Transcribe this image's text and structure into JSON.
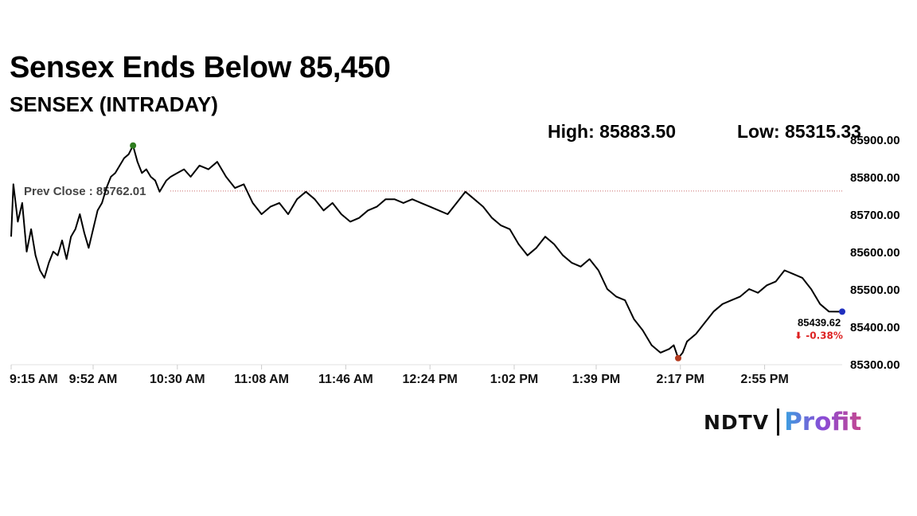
{
  "headline": "Sensex Ends Below 85,450",
  "chart_data": {
    "type": "line",
    "title": "SENSEX (INTRADAY)",
    "high_label": "High: 85883.50",
    "low_label": "Low: 85315.33",
    "prev_close": 85762.01,
    "prev_close_label": "Prev Close : 85762.01",
    "last_value_label": "85439.62",
    "change_label": "⬇ -0.38%",
    "ylim": [
      85300,
      85900
    ],
    "y_ticks": [
      85300,
      85400,
      85500,
      85600,
      85700,
      85800,
      85900
    ],
    "y_tick_labels": [
      "85300.00",
      "85400.00",
      "85500.00",
      "85600.00",
      "85700.00",
      "85800.00",
      "85900.00"
    ],
    "x_tick_labels": [
      "9:15 AM",
      "9:52 AM",
      "10:30 AM",
      "11:08 AM",
      "11:46 AM",
      "12:24 PM",
      "1:02 PM",
      "1:39 PM",
      "2:17 PM",
      "2:55 PM"
    ],
    "x": [
      "9:15",
      "9:16",
      "9:18",
      "9:20",
      "9:22",
      "9:24",
      "9:26",
      "9:28",
      "9:30",
      "9:32",
      "9:34",
      "9:36",
      "9:38",
      "9:40",
      "9:42",
      "9:44",
      "9:46",
      "9:48",
      "9:50",
      "9:52",
      "9:54",
      "9:56",
      "9:58",
      "10:00",
      "10:02",
      "10:04",
      "10:06",
      "10:08",
      "10:10",
      "10:12",
      "10:14",
      "10:16",
      "10:18",
      "10:20",
      "10:22",
      "10:25",
      "10:27",
      "10:30",
      "10:33",
      "10:36",
      "10:40",
      "10:44",
      "10:48",
      "10:52",
      "10:56",
      "11:00",
      "11:04",
      "11:08",
      "11:12",
      "11:16",
      "11:20",
      "11:24",
      "11:28",
      "11:32",
      "11:36",
      "11:40",
      "11:44",
      "11:48",
      "11:52",
      "11:56",
      "12:00",
      "12:04",
      "12:08",
      "12:12",
      "12:16",
      "12:20",
      "12:24",
      "12:28",
      "12:32",
      "12:36",
      "12:40",
      "12:44",
      "12:48",
      "12:52",
      "12:56",
      "13:00",
      "13:04",
      "13:08",
      "13:12",
      "13:16",
      "13:20",
      "13:24",
      "13:28",
      "13:32",
      "13:36",
      "13:40",
      "13:44",
      "13:48",
      "13:52",
      "13:56",
      "14:00",
      "14:04",
      "14:08",
      "14:12",
      "14:14",
      "14:16",
      "14:18",
      "14:20",
      "14:24",
      "14:28",
      "14:32",
      "14:36",
      "14:40",
      "14:44",
      "14:48",
      "14:52",
      "14:56",
      "15:00",
      "15:04",
      "15:08",
      "15:12",
      "15:16",
      "15:20",
      "15:24",
      "15:28",
      "15:30"
    ],
    "values": [
      85640,
      85780,
      85680,
      85730,
      85600,
      85660,
      85590,
      85550,
      85530,
      85570,
      85600,
      85590,
      85630,
      85580,
      85640,
      85660,
      85700,
      85650,
      85610,
      85660,
      85710,
      85730,
      85770,
      85800,
      85810,
      85830,
      85850,
      85860,
      85883.5,
      85840,
      85810,
      85820,
      85800,
      85790,
      85760,
      85790,
      85800,
      85810,
      85820,
      85800,
      85830,
      85820,
      85840,
      85800,
      85770,
      85780,
      85730,
      85700,
      85720,
      85730,
      85700,
      85740,
      85760,
      85740,
      85710,
      85730,
      85700,
      85680,
      85690,
      85710,
      85720,
      85740,
      85740,
      85730,
      85740,
      85730,
      85720,
      85710,
      85700,
      85730,
      85760,
      85740,
      85720,
      85690,
      85670,
      85660,
      85620,
      85590,
      85610,
      85640,
      85620,
      85590,
      85570,
      85560,
      85580,
      85550,
      85500,
      85480,
      85470,
      85420,
      85390,
      85350,
      85330,
      85340,
      85350,
      85315.33,
      85330,
      85360,
      85380,
      85410,
      85440,
      85460,
      85470,
      85480,
      85500,
      85490,
      85510,
      85520,
      85550,
      85540,
      85530,
      85500,
      85460,
      85440,
      85439.62,
      85439.62
    ]
  },
  "logo": {
    "brand_left": "NDTV",
    "brand_right": "Profit"
  }
}
